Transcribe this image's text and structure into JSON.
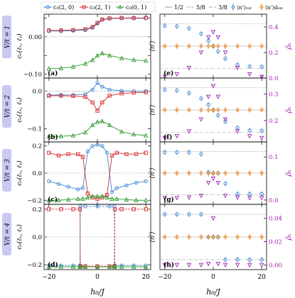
{
  "colors": {
    "blue": "#3a86d6",
    "red": "#d62728",
    "green": "#2e9a2e",
    "orange": "#f07f12",
    "purple": "#a020b0",
    "label_bg": "#c9c9f5",
    "grid": "#999999"
  },
  "row_labels": [
    "V/t = 1",
    "V/t = 2",
    "V/t = 3",
    "V/t = 4"
  ],
  "legend_left": {
    "entries": [
      "c₀(2, 0)",
      "c₀(2, 1)",
      "c₀(0, 1)"
    ]
  },
  "legend_right": {
    "entries": [
      "1/2",
      "5/8",
      "3/8",
      "⟨n'⟩ₕᵤₜ",
      "⟨n'⟩dₒₘ"
    ]
  },
  "axes": {
    "xlabel": "h₀/J",
    "ylabel_left": "c₀(ℓₓ, ℓᵧ)",
    "ylabel_right_left": "⟨n'⟩",
    "ylabel_right_right": "ρ̄ₛ"
  },
  "chart_data": [
    {
      "type": "line",
      "panel": "(a)",
      "x": [
        -20,
        -15,
        -10,
        -5,
        -2,
        0,
        2,
        5,
        10,
        15,
        20
      ],
      "xlim": [
        -22,
        22
      ],
      "ylim": [
        -0.11,
        0.06
      ],
      "yticks": [
        -0.1,
        -0.05,
        0.0,
        0.05
      ],
      "ytick_labels": [
        "−0.10",
        "",
        "0.00",
        ""
      ],
      "series": [
        {
          "name": "c₀(2, 0)",
          "color": "blue",
          "marker": "circle",
          "values": [
            0.015,
            0.015,
            0.016,
            0.018,
            0.024,
            0.035,
            0.045,
            0.048,
            0.049,
            0.049,
            0.049
          ]
        },
        {
          "name": "c₀(2, 1)",
          "color": "red",
          "marker": "square",
          "values": [
            0.017,
            0.017,
            0.018,
            0.02,
            0.026,
            0.037,
            0.046,
            0.049,
            0.05,
            0.05,
            0.05
          ]
        },
        {
          "name": "c₀(0, 1)",
          "color": "green",
          "marker": "triangle",
          "values": [
            -0.085,
            -0.084,
            -0.08,
            -0.072,
            -0.062,
            -0.05,
            -0.044,
            -0.05,
            -0.057,
            -0.062,
            -0.064
          ]
        }
      ]
    },
    {
      "type": "line",
      "panel": "(b)",
      "x": [
        -20,
        -15,
        -10,
        -5,
        -2,
        0,
        2,
        5,
        10,
        15,
        20
      ],
      "xlim": [
        -22,
        22
      ],
      "ylim": [
        -0.135,
        0.035
      ],
      "yticks": [
        -0.1,
        0.0
      ],
      "ytick_labels": [
        "−0.1",
        "0.0"
      ],
      "series": [
        {
          "name": "c₀(2, 0)",
          "color": "blue",
          "marker": "circle",
          "values": [
            -0.01,
            -0.01,
            -0.01,
            -0.008,
            0.004,
            0.022,
            0.012,
            0.004,
            0.001,
            0.0,
            0.0
          ]
        },
        {
          "name": "c₀(2, 1)",
          "color": "red",
          "marker": "square",
          "values": [
            -0.012,
            -0.012,
            -0.013,
            -0.015,
            -0.03,
            -0.052,
            -0.03,
            -0.012,
            -0.006,
            -0.004,
            -0.003
          ]
        },
        {
          "name": "c₀(0, 1)",
          "color": "green",
          "marker": "triangle",
          "values": [
            -0.12,
            -0.12,
            -0.118,
            -0.11,
            -0.09,
            -0.082,
            -0.08,
            -0.09,
            -0.108,
            -0.115,
            -0.118
          ]
        }
      ]
    },
    {
      "type": "line",
      "panel": "(c)",
      "x": [
        -20,
        -16,
        -12,
        -8,
        -6,
        -4,
        -2,
        0,
        2,
        4,
        6,
        8,
        12,
        16,
        20
      ],
      "xlim": [
        -22,
        22
      ],
      "ylim": [
        -0.23,
        0.23
      ],
      "yticks": [
        -0.2,
        0.0,
        0.2
      ],
      "ytick_labels": [
        "−0.2",
        "0.0",
        "0.2"
      ],
      "series": [
        {
          "name": "c₀(2, 0)",
          "color": "blue",
          "marker": "circle",
          "values": [
            -0.06,
            -0.08,
            -0.1,
            -0.12,
            -0.11,
            0.16,
            0.2,
            0.21,
            0.2,
            0.15,
            -0.14,
            -0.11,
            -0.09,
            -0.07,
            -0.06
          ]
        },
        {
          "name": "c₀(2, 1)",
          "color": "red",
          "marker": "square",
          "values": [
            0.15,
            0.13,
            0.14,
            0.14,
            0.12,
            -0.15,
            -0.18,
            -0.19,
            -0.18,
            -0.16,
            0.13,
            0.15,
            0.14,
            0.14,
            0.15
          ]
        },
        {
          "name": "c₀(0, 1)",
          "color": "green",
          "marker": "triangle",
          "values": [
            -0.2,
            -0.2,
            -0.195,
            -0.19,
            -0.19,
            -0.18,
            -0.17,
            -0.17,
            -0.17,
            -0.18,
            -0.19,
            -0.19,
            -0.195,
            -0.2,
            -0.2
          ]
        }
      ]
    },
    {
      "type": "line",
      "panel": "(d)",
      "x": [
        -20,
        -15,
        -10,
        -7.2,
        -7,
        -5,
        0,
        5,
        7,
        7.2,
        10,
        15,
        20
      ],
      "xlim": [
        -22,
        22
      ],
      "ylim": [
        -0.235,
        0.235
      ],
      "yticks": [
        -0.2,
        0.0,
        0.2
      ],
      "ytick_labels": [
        "−0.2",
        "0.0",
        "0.2"
      ],
      "series": [
        {
          "name": "c₀(2, 0)",
          "color": "blue",
          "marker": "circle",
          "values": [
            -0.205,
            -0.205,
            -0.205,
            -0.205,
            0.22,
            0.22,
            0.22,
            0.22,
            0.22,
            -0.205,
            -0.205,
            -0.205,
            -0.205
          ]
        },
        {
          "name": "c₀(2, 1)",
          "color": "red",
          "marker": "square",
          "values": [
            0.2,
            0.2,
            0.2,
            0.2,
            -0.21,
            -0.21,
            -0.21,
            -0.21,
            -0.21,
            0.2,
            0.2,
            0.2,
            0.2
          ]
        },
        {
          "name": "c₀(0, 1)",
          "color": "green",
          "marker": "triangle",
          "values": [
            -0.215,
            -0.215,
            -0.215,
            -0.215,
            -0.215,
            -0.215,
            -0.215,
            -0.215,
            -0.215,
            -0.215,
            -0.215,
            -0.215,
            -0.215
          ]
        }
      ]
    },
    {
      "type": "scatter",
      "panel": "(e)",
      "x": [
        -20,
        -15,
        -10,
        -5,
        -2,
        0,
        2,
        5,
        10,
        15,
        20
      ],
      "xlim": [
        -22,
        22
      ],
      "ylim": [
        0.32,
        0.68
      ],
      "ylim_right": [
        0.0,
        0.5
      ],
      "yticks_right": [
        0.0,
        0.2,
        0.4
      ],
      "ytick_labels_right": [
        "0.0",
        "0.2",
        "0.4"
      ],
      "series": [
        {
          "name": "⟨n'⟩ₕᵤₜ",
          "color": "blue",
          "marker": "circle",
          "axis": "left",
          "values": [
            0.615,
            0.612,
            0.6,
            0.57,
            0.53,
            0.5,
            0.47,
            0.43,
            0.395,
            0.385,
            0.383
          ]
        },
        {
          "name": "⟨n'⟩dₒₘ",
          "color": "orange",
          "marker": "diamond",
          "axis": "left",
          "values": [
            0.5,
            0.5,
            0.5,
            0.5,
            0.5,
            0.5,
            0.5,
            0.5,
            0.5,
            0.5,
            0.5
          ]
        },
        {
          "name": "ρ̄ₛ",
          "color": "purple",
          "marker": "triangle-down",
          "axis": "right",
          "values": [
            0.01,
            0.03,
            0.08,
            0.2,
            0.32,
            0.36,
            0.32,
            0.2,
            0.08,
            0.03,
            0.01
          ]
        }
      ]
    },
    {
      "type": "scatter",
      "panel": "(f)",
      "x": [
        -20,
        -15,
        -10,
        -5,
        -2,
        0,
        2,
        5,
        10,
        15,
        20
      ],
      "xlim": [
        -22,
        22
      ],
      "ylim": [
        0.32,
        0.68
      ],
      "ylim_right": [
        0.12,
        0.36
      ],
      "yticks_right": [
        0.2,
        0.3
      ],
      "ytick_labels_right": [
        "0.2",
        "0.3"
      ],
      "series": [
        {
          "name": "⟨n'⟩ₕᵤₜ",
          "color": "blue",
          "marker": "circle",
          "axis": "left",
          "values": [
            0.615,
            0.61,
            0.595,
            0.565,
            0.53,
            0.5,
            0.47,
            0.435,
            0.4,
            0.385,
            0.383
          ]
        },
        {
          "name": "⟨n'⟩dₒₘ",
          "color": "orange",
          "marker": "diamond",
          "axis": "left",
          "values": [
            0.5,
            0.5,
            0.5,
            0.5,
            0.5,
            0.5,
            0.5,
            0.5,
            0.5,
            0.5,
            0.5
          ]
        },
        {
          "name": "ρ̄ₛ",
          "color": "purple",
          "marker": "triangle-down",
          "axis": "right",
          "values": [
            0.135,
            0.142,
            0.16,
            0.205,
            0.29,
            0.33,
            0.29,
            0.205,
            0.16,
            0.142,
            0.135
          ]
        }
      ]
    },
    {
      "type": "scatter",
      "panel": "(g)",
      "x": [
        -20,
        -15,
        -10,
        -5,
        -2,
        0,
        2,
        5,
        10,
        15,
        20
      ],
      "xlim": [
        -22,
        22
      ],
      "ylim": [
        0.32,
        0.68
      ],
      "ylim_right": [
        -0.01,
        0.135
      ],
      "yticks_right": [
        0.0,
        0.1
      ],
      "ytick_labels_right": [
        "0.0",
        "0.1"
      ],
      "series": [
        {
          "name": "⟨n'⟩ₕᵤₜ",
          "color": "blue",
          "marker": "circle",
          "axis": "left",
          "values": [
            0.62,
            0.62,
            0.62,
            0.61,
            0.505,
            0.5,
            0.5,
            0.44,
            0.38,
            0.38,
            0.38
          ]
        },
        {
          "name": "⟨n'⟩dₒₘ",
          "color": "orange",
          "marker": "diamond",
          "axis": "left",
          "values": [
            0.5,
            0.5,
            0.5,
            0.5,
            0.5,
            0.5,
            0.5,
            0.5,
            0.5,
            0.5,
            0.5
          ]
        },
        {
          "name": "ρ̄ₛ",
          "color": "purple",
          "marker": "triangle-down",
          "axis": "right",
          "values": [
            0.005,
            0.005,
            0.006,
            0.01,
            0.04,
            0.05,
            0.04,
            0.01,
            0.006,
            0.005,
            0.005
          ]
        }
      ]
    },
    {
      "type": "scatter",
      "panel": "(h)",
      "x": [
        -20,
        -15,
        -10,
        -5,
        -2,
        0,
        2,
        5,
        10,
        15,
        20
      ],
      "xlim": [
        -22,
        22
      ],
      "ylim": [
        0.32,
        0.68
      ],
      "ylim_right": [
        -0.004,
        0.052
      ],
      "yticks_right": [
        0.0,
        0.02,
        0.04
      ],
      "ytick_labels_right": [
        "0.00",
        "0.02",
        "0.04"
      ],
      "series": [
        {
          "name": "⟨n'⟩ₕᵤₜ",
          "color": "blue",
          "marker": "circle",
          "axis": "left",
          "values": [
            0.625,
            0.625,
            0.625,
            0.625,
            0.5,
            0.5,
            0.5,
            0.375,
            0.375,
            0.375,
            0.375
          ]
        },
        {
          "name": "⟨n'⟩dₒₘ",
          "color": "orange",
          "marker": "diamond",
          "axis": "left",
          "values": [
            0.5,
            0.5,
            0.5,
            0.5,
            0.5,
            0.5,
            0.5,
            0.5,
            0.5,
            0.5,
            0.5
          ]
        },
        {
          "name": "ρ̄ₛ",
          "color": "purple",
          "marker": "triangle-down",
          "axis": "right",
          "values": [
            0.0,
            0.0,
            0.0,
            0.0,
            0.001,
            0.04,
            0.001,
            0.0,
            0.0,
            0.0,
            0.0
          ]
        }
      ]
    }
  ],
  "x_ticks": [
    -20,
    0,
    20
  ],
  "x_tick_labels": [
    "−20",
    "0",
    "20"
  ]
}
